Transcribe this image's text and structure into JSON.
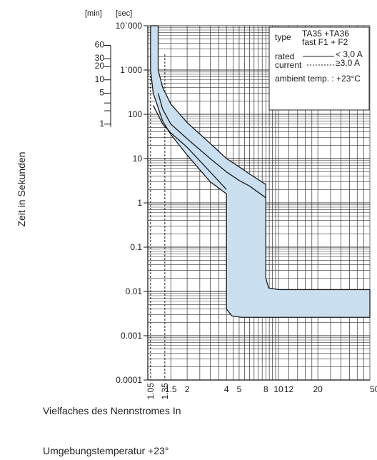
{
  "chart_data": {
    "type": "line",
    "ylabel": "Zeit in Sekunden",
    "xlabel": "Vielfaches des Nennstromes In",
    "caption": "Umgebungstemperatur +23°",
    "x_scale": "log",
    "y_scale": "log",
    "xlim": [
      1,
      50
    ],
    "ylim": [
      0.0001,
      10000
    ],
    "grid": true,
    "sec_unit": "[sec]",
    "min_unit": "[min]",
    "sec_ticks": [
      {
        "value": 10000,
        "label": "10`000"
      },
      {
        "value": 1000,
        "label": "1`000"
      },
      {
        "value": 100,
        "label": "100"
      },
      {
        "value": 10,
        "label": "10"
      },
      {
        "value": 1,
        "label": "1"
      },
      {
        "value": 0.1,
        "label": "0.1"
      },
      {
        "value": 0.01,
        "label": "0.01"
      },
      {
        "value": 0.001,
        "label": "0.001"
      },
      {
        "value": 0.0001,
        "label": "0.0001"
      }
    ],
    "min_ticks": [
      {
        "minutes": 60,
        "label": "60"
      },
      {
        "minutes": 30,
        "label": "30"
      },
      {
        "minutes": 20,
        "label": "20"
      },
      {
        "minutes": 10,
        "label": "10"
      },
      {
        "minutes": 5,
        "label": "5"
      },
      {
        "minutes": 3,
        "label": ""
      },
      {
        "minutes": 2,
        "label": ""
      },
      {
        "minutes": 1,
        "label": "1"
      }
    ],
    "x_ticks": [
      {
        "value": 1.05,
        "label": "1.05",
        "rotated": true
      },
      {
        "value": 1.35,
        "label": "1.35",
        "rotated": true
      },
      {
        "value": 1.5,
        "label": "1.5",
        "rotated": false
      },
      {
        "value": 2,
        "label": "2",
        "rotated": false
      },
      {
        "value": 4,
        "label": "4",
        "rotated": false
      },
      {
        "value": 5,
        "label": "5",
        "rotated": false
      },
      {
        "value": 8,
        "label": "8",
        "rotated": false
      },
      {
        "value": 10,
        "label": "10",
        "rotated": false
      },
      {
        "value": 12,
        "label": "12",
        "rotated": false
      },
      {
        "value": 20,
        "label": "20",
        "rotated": false
      },
      {
        "value": 50,
        "label": "50",
        "rotated": false
      }
    ],
    "band_outer": [
      [
        1.2,
        10000
      ],
      [
        1.2,
        1000
      ],
      [
        1.3,
        400
      ],
      [
        1.5,
        170
      ],
      [
        2,
        65
      ],
      [
        3,
        22
      ],
      [
        4,
        10
      ],
      [
        5,
        6.5
      ],
      [
        6,
        4.5
      ],
      [
        8,
        2.6
      ],
      [
        8,
        0.02
      ],
      [
        8.4,
        0.012
      ],
      [
        10,
        0.011
      ],
      [
        50,
        0.011
      ]
    ],
    "band_inner": [
      [
        50,
        0.0026
      ],
      [
        5.2,
        0.0026
      ],
      [
        4.4,
        0.0028
      ],
      [
        4,
        0.004
      ],
      [
        4,
        1.6
      ],
      [
        3,
        3
      ],
      [
        2,
        12
      ],
      [
        1.5,
        35
      ],
      [
        1.3,
        70
      ],
      [
        1.1,
        300
      ],
      [
        1.05,
        1000
      ],
      [
        1.05,
        10000
      ]
    ],
    "curve_slow": [
      [
        1.2,
        300
      ],
      [
        1.3,
        130
      ],
      [
        1.5,
        60
      ],
      [
        2,
        28
      ],
      [
        3,
        10
      ],
      [
        4,
        5
      ],
      [
        5,
        3.2
      ],
      [
        6,
        2.4
      ],
      [
        8,
        1.3
      ]
    ],
    "curve_fast": [
      [
        1.1,
        160
      ],
      [
        1.3,
        60
      ],
      [
        1.5,
        38
      ],
      [
        2,
        18
      ],
      [
        3,
        5
      ],
      [
        4,
        2
      ]
    ],
    "legend": {
      "placement": "top-right",
      "type_label": "type",
      "type_value": "TA35 +TA36",
      "fast_value": "fast F1 + F2",
      "rated_label": "rated",
      "current_label": "current",
      "solid_value": "< 3,0 A",
      "dashed_value": "≥3,0 A",
      "ambient_label": "ambient temp. : +23°C"
    },
    "colors": {
      "band_fill": "#c9dff0",
      "line": "#1a1a1a",
      "grid": "#333333"
    }
  }
}
